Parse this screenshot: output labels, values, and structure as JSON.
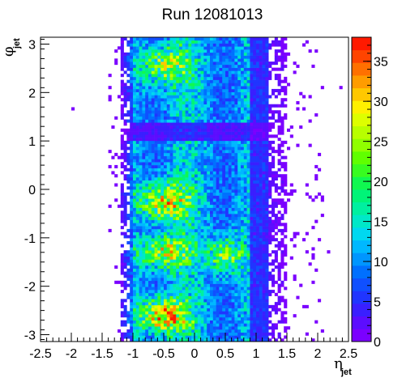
{
  "chart_data": {
    "type": "heatmap",
    "title": "Run 12081013",
    "xlabel": "η",
    "xlabel_sub": "jet",
    "ylabel": "φ",
    "ylabel_sub": "jet",
    "xlim": [
      -2.5,
      2.5
    ],
    "ylim": [
      -3.1416,
      3.1416
    ],
    "x_bins": 100,
    "y_bins": 100,
    "x_ticks": [
      "-2.5",
      "-2",
      "-1.5",
      "-1",
      "-0.5",
      "0",
      "0.5",
      "1",
      "1.5",
      "2",
      "2.5"
    ],
    "y_ticks": [
      "-3",
      "-2",
      "-1",
      "0",
      "1",
      "2",
      "3"
    ],
    "z_range": [
      0,
      38
    ],
    "z_ticks": [
      "0",
      "5",
      "10",
      "15",
      "20",
      "25",
      "30",
      "35"
    ],
    "palette": [
      "#7b00ff",
      "#5c0dff",
      "#3a1fff",
      "#2035ff",
      "#1050ff",
      "#0070ff",
      "#0096ff",
      "#00b8ff",
      "#00d8f0",
      "#00e8c8",
      "#00f0a0",
      "#00f478",
      "#10f850",
      "#38fc20",
      "#60ff00",
      "#90ff00",
      "#b8ff00",
      "#ddff00",
      "#fff000",
      "#ffc800",
      "#ff9c00",
      "#ff7000",
      "#ff4400",
      "#ff1a00"
    ],
    "populated_eta_range": [
      -1.2,
      1.5
    ],
    "hot_regions": [
      {
        "eta": [
          -0.8,
          -0.2
        ],
        "phi": [
          -2.9,
          -2.3
        ],
        "peak": 36
      },
      {
        "eta": [
          -0.8,
          -0.2
        ],
        "phi": [
          -1.6,
          -1.0
        ],
        "peak": 30
      },
      {
        "eta": [
          -0.8,
          -0.2
        ],
        "phi": [
          -0.6,
          0.1
        ],
        "peak": 32
      },
      {
        "eta": [
          0.3,
          0.7
        ],
        "phi": [
          -1.7,
          -1.0
        ],
        "peak": 28
      },
      {
        "eta": [
          -0.8,
          -0.2
        ],
        "phi": [
          2.2,
          2.9
        ],
        "peak": 28
      }
    ],
    "low_band_phi": [
      1.0,
      1.4
    ]
  }
}
